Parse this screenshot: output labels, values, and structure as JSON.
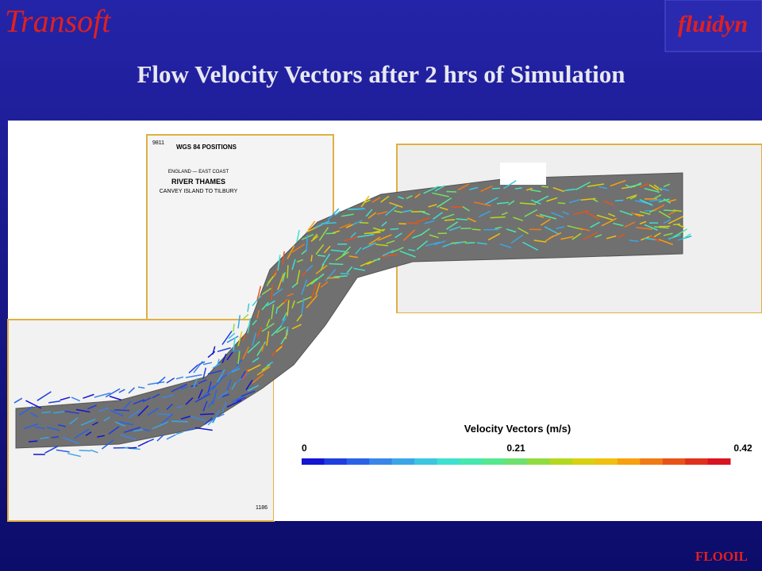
{
  "header": {
    "brand": "Transoft",
    "logo": "fluidyn"
  },
  "title": "Flow Velocity Vectors after 2 hrs of Simulation",
  "map": {
    "labels": [
      "WGS 84 POSITIONS",
      "ENGLAND — EAST COAST",
      "RIVER THAMES",
      "CANVEY ISLAND TO TILBURY",
      "9811",
      "1186"
    ]
  },
  "legend": {
    "title": "Velocity Vectors (m/s)",
    "ticks": [
      0,
      0.21,
      0.42
    ],
    "colors": [
      "#1414d2",
      "#1e3ee0",
      "#2a62e6",
      "#3a86e8",
      "#3aa6e6",
      "#3cc6e0",
      "#3ee0d0",
      "#46e8b0",
      "#56e890",
      "#6ee070",
      "#90dc40",
      "#b4d820",
      "#d8d010",
      "#f0c010",
      "#f8a010",
      "#f07a14",
      "#e85418",
      "#e0301c",
      "#d81420"
    ]
  },
  "footer": "FLOOIL"
}
